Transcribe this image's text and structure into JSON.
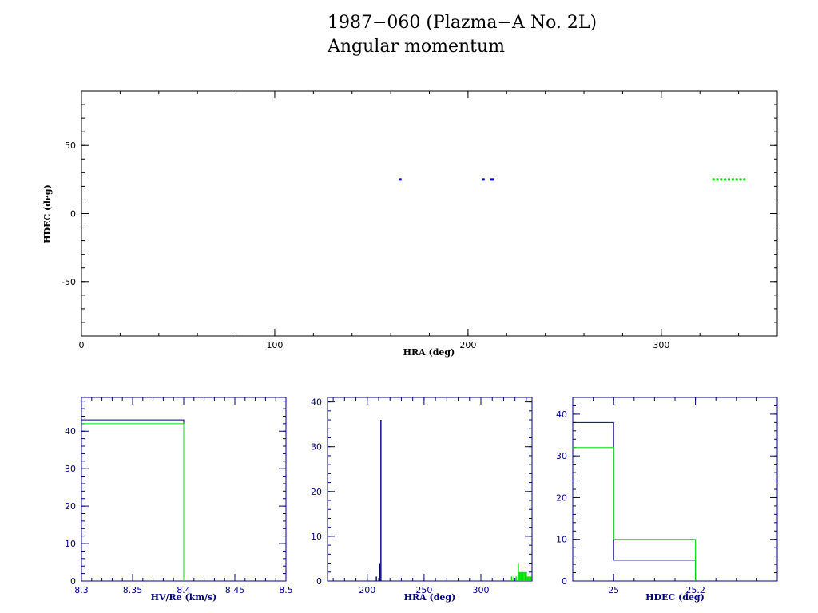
{
  "title": {
    "line1": "1987−060 (Plazma−A No. 2L)",
    "line2": "Angular momentum"
  },
  "colors": {
    "frame": "#000000",
    "blue_frame": "#000080",
    "series_blue": "#0000c8",
    "series_navy": "#000080",
    "series_green": "#00e000"
  },
  "chart_data": [
    {
      "type": "scatter",
      "xlabel": "HRA (deg)",
      "ylabel": "HDEC (deg)",
      "xlim": [
        0,
        360
      ],
      "ylim": [
        -90,
        90
      ],
      "xticks": [
        0,
        100,
        200,
        300
      ],
      "yticks": [
        50,
        0,
        -50
      ],
      "grid": false,
      "series": [
        {
          "color": "blue",
          "points": [
            [
              165,
              25
            ],
            [
              208,
              25
            ],
            [
              212,
              25
            ],
            [
              213,
              25
            ]
          ]
        },
        {
          "color": "green",
          "points": [
            [
              327,
              25
            ],
            [
              329,
              25
            ],
            [
              331,
              25
            ],
            [
              333,
              25
            ],
            [
              335,
              25
            ],
            [
              337,
              25
            ],
            [
              339,
              25
            ],
            [
              341,
              25
            ],
            [
              343,
              25
            ]
          ]
        }
      ]
    },
    {
      "type": "bar",
      "xlabel": "HV/Re (km/s)",
      "ylabel": "",
      "xlim": [
        8.3,
        8.5
      ],
      "ylim": [
        0,
        49
      ],
      "xticks": [
        "8.3",
        "8.35",
        "8.4",
        "8.45",
        "8.5"
      ],
      "yticks": [
        "0",
        "10",
        "20",
        "30",
        "40"
      ],
      "series": [
        {
          "color": "navy",
          "bins": [
            [
              8.3,
              8.4,
              43
            ]
          ]
        },
        {
          "color": "green",
          "bins": [
            [
              8.3,
              8.4,
              42
            ]
          ]
        }
      ]
    },
    {
      "type": "bar",
      "xlabel": "HRA (deg)",
      "ylabel": "",
      "xlim": [
        165,
        345
      ],
      "ylim": [
        0,
        41
      ],
      "xticks": [
        "200",
        "250",
        "300"
      ],
      "yticks": [
        "0",
        "10",
        "20",
        "30",
        "40"
      ],
      "series": [
        {
          "color": "navy",
          "spikes": [
            [
              208,
              1
            ],
            [
              211,
              4
            ],
            [
              212,
              36
            ]
          ]
        },
        {
          "color": "green",
          "spikes": [
            [
              327,
              1
            ],
            [
              329,
              1
            ],
            [
              331,
              1
            ],
            [
              333,
              4
            ],
            [
              334,
              2
            ],
            [
              335,
              2
            ],
            [
              336,
              2
            ],
            [
              337,
              2
            ],
            [
              338,
              2
            ],
            [
              339,
              2
            ],
            [
              340,
              2
            ],
            [
              341,
              1
            ],
            [
              342,
              1
            ],
            [
              343,
              1
            ],
            [
              344,
              1
            ]
          ]
        }
      ]
    },
    {
      "type": "bar",
      "xlabel": "HDEC (deg)",
      "ylabel": "",
      "xlim": [
        24.9,
        25.4
      ],
      "ylim": [
        0,
        44
      ],
      "xticks": [
        "25",
        "25.2"
      ],
      "yticks": [
        "0",
        "10",
        "20",
        "30",
        "40"
      ],
      "series": [
        {
          "color": "navy",
          "bins": [
            [
              24.9,
              25.0,
              38
            ],
            [
              25.0,
              25.2,
              5
            ]
          ]
        },
        {
          "color": "green",
          "bins": [
            [
              24.9,
              25.0,
              32
            ],
            [
              25.0,
              25.2,
              10
            ]
          ]
        }
      ]
    }
  ]
}
